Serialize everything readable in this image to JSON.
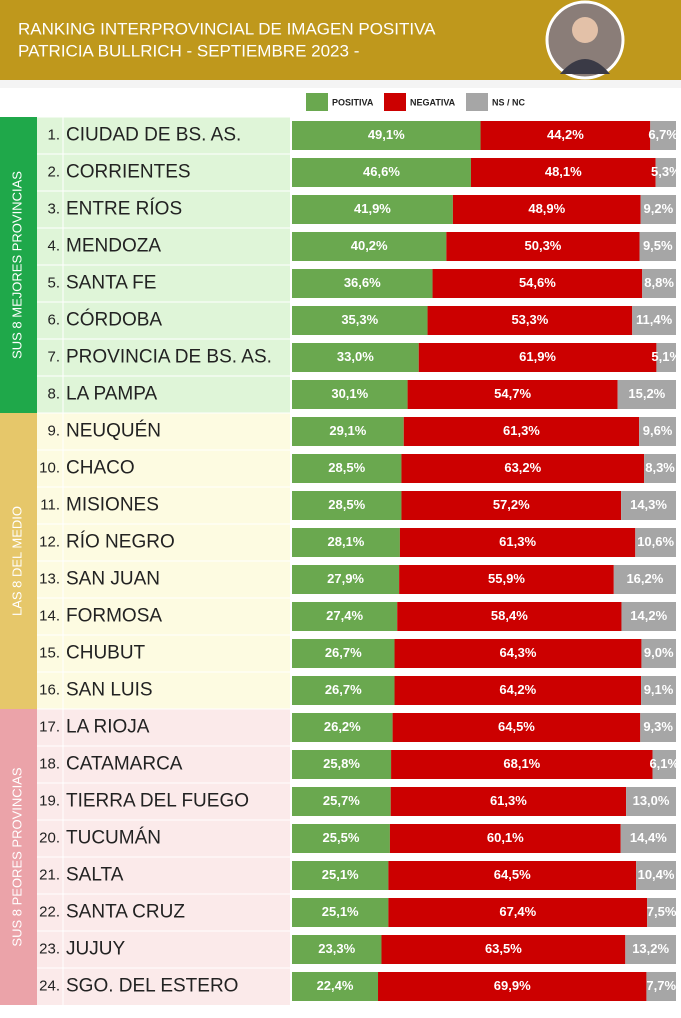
{
  "chart_data": {
    "type": "bar",
    "orientation": "horizontal",
    "stacked": true,
    "title_lines": [
      "RANKING INTERPROVINCIAL DE IMAGEN POSITIVA",
      "PATRICIA BULLRICH - SEPTIEMBRE 2023 -"
    ],
    "groups": [
      "SUS 8 MEJORES PROVINCIAS",
      "LAS 8 DEL MEDIO",
      "SUS 8 PEORES PROVINCIAS"
    ],
    "ranks": [
      "1.",
      "2.",
      "3.",
      "4.",
      "5.",
      "6.",
      "7.",
      "8.",
      "9.",
      "10.",
      "11.",
      "12.",
      "13.",
      "14.",
      "15.",
      "16.",
      "17.",
      "18.",
      "19.",
      "20.",
      "21.",
      "22.",
      "23.",
      "24."
    ],
    "categories": [
      "CIUDAD DE BS. AS.",
      "CORRIENTES",
      "ENTRE RÍOS",
      "MENDOZA",
      "SANTA FE",
      "CÓRDOBA",
      "PROVINCIA DE BS. AS.",
      "LA PAMPA",
      "NEUQUÉN",
      "CHACO",
      "MISIONES",
      "RÍO NEGRO",
      "SAN JUAN",
      "FORMOSA",
      "CHUBUT",
      "SAN LUIS",
      "LA RIOJA",
      "CATAMARCA",
      "TIERRA DEL FUEGO",
      "TUCUMÁN",
      "SALTA",
      "SANTA CRUZ",
      "JUJUY",
      "SGO. DEL ESTERO"
    ],
    "xlim": [
      0,
      100
    ],
    "series": [
      {
        "name": "POSITIVA",
        "color": "#6aa84f",
        "values": [
          49.1,
          46.6,
          41.9,
          40.2,
          36.6,
          35.3,
          33.0,
          30.1,
          29.1,
          28.5,
          28.5,
          28.1,
          27.9,
          27.4,
          26.7,
          26.7,
          26.2,
          25.8,
          25.7,
          25.5,
          25.1,
          25.1,
          23.3,
          22.4
        ],
        "value_labels": [
          "49,1%",
          "46,6%",
          "41,9%",
          "40,2%",
          "36,6%",
          "35,3%",
          "33,0%",
          "30,1%",
          "29,1%",
          "28,5%",
          "28,5%",
          "28,1%",
          "27,9%",
          "27,4%",
          "26,7%",
          "26,7%",
          "26,2%",
          "25,8%",
          "25,7%",
          "25,5%",
          "25,1%",
          "25,1%",
          "23,3%",
          "22,4%"
        ]
      },
      {
        "name": "NEGATIVA",
        "color": "#cc0000",
        "values": [
          44.2,
          48.1,
          48.9,
          50.3,
          54.6,
          53.3,
          61.9,
          54.7,
          61.3,
          63.2,
          57.2,
          61.3,
          55.9,
          58.4,
          64.3,
          64.2,
          64.5,
          68.1,
          61.3,
          60.1,
          64.5,
          67.4,
          63.5,
          69.9
        ],
        "value_labels": [
          "44,2%",
          "48,1%",
          "48,9%",
          "50,3%",
          "54,6%",
          "53,3%",
          "61,9%",
          "54,7%",
          "61,3%",
          "63,2%",
          "57,2%",
          "61,3%",
          "55,9%",
          "58,4%",
          "64,3%",
          "64,2%",
          "64,5%",
          "68,1%",
          "61,3%",
          "60,1%",
          "64,5%",
          "67,4%",
          "63,5%",
          "69,9%"
        ]
      },
      {
        "name": "NS / NC",
        "color": "#a6a6a6",
        "values": [
          6.7,
          5.3,
          9.2,
          9.5,
          8.8,
          11.4,
          5.1,
          15.2,
          9.6,
          8.3,
          14.3,
          10.6,
          16.2,
          14.2,
          9.0,
          9.1,
          9.3,
          6.1,
          13.0,
          14.4,
          10.4,
          7.5,
          13.2,
          7.7
        ],
        "value_labels": [
          "6,7%",
          "5,3%",
          "9,2%",
          "9,5%",
          "8,8%",
          "11,4%",
          "5,1%",
          "15,2%",
          "9,6%",
          "8,3%",
          "14,3%",
          "10,6%",
          "16,2%",
          "14,2%",
          "9,0%",
          "9,1%",
          "9,3%",
          "6,1%",
          "13,0%",
          "14,4%",
          "10,4%",
          "7,5%",
          "13,2%",
          "7,7%"
        ]
      }
    ]
  }
}
